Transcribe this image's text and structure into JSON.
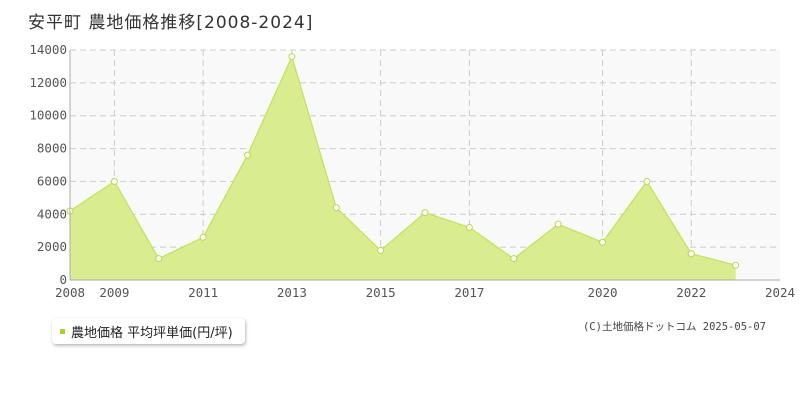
{
  "title": "安平町 農地価格推移[2008-2024]",
  "legend_label": "農地価格 平均坪単価(円/坪)",
  "copyright": "(C)土地価格ドットコム 2025-05-07",
  "colors": {
    "line": "#c2e25a",
    "fill": "#d9ec8f",
    "marker_stroke": "#b9d94c",
    "legend_marker": "#aad131",
    "grid": "#cccccc"
  },
  "chart_data": {
    "type": "area",
    "x": [
      2008,
      2009,
      2010,
      2011,
      2012,
      2013,
      2014,
      2015,
      2016,
      2017,
      2018,
      2019,
      2020,
      2021,
      2022,
      2023,
      2024
    ],
    "series": [
      {
        "name": "農地価格 平均坪単価(円/坪)",
        "values": [
          4200,
          6000,
          1300,
          2600,
          7600,
          13600,
          4400,
          1800,
          4100,
          3200,
          1300,
          3400,
          2300,
          6000,
          1600,
          900,
          null
        ]
      }
    ],
    "x_tick_labels": [
      "2008",
      "2009",
      "2011",
      "2013",
      "2015",
      "2017",
      "2020",
      "2022",
      "2024"
    ],
    "y_ticks": [
      0,
      2000,
      4000,
      6000,
      8000,
      10000,
      12000,
      14000
    ],
    "ylim": [
      0,
      14000
    ],
    "grid": true,
    "legend_position": "bottom-left"
  }
}
